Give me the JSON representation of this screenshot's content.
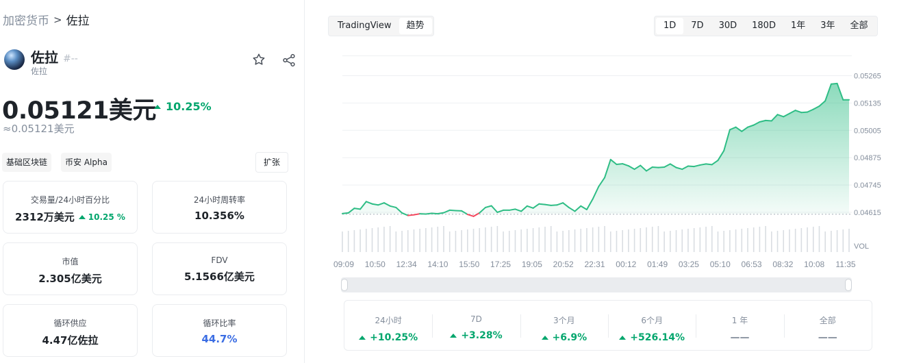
{
  "breadcrumb": {
    "parent": "加密货币",
    "separator": ">",
    "current": "佐拉"
  },
  "coin": {
    "name": "佐拉",
    "rank": "#--",
    "subtitle": "佐拉"
  },
  "price": {
    "value": "0.05121美元",
    "change": "10.25%",
    "approx": "≈0.05121美元"
  },
  "tags": [
    "基础区块链",
    "币安 Alpha"
  ],
  "expand_label": "扩张",
  "stats": [
    {
      "label": "交易量/24小时百分比",
      "value": "2312万美元",
      "sub": "10.25 %"
    },
    {
      "label": "24小时周转率",
      "value": "10.356%"
    },
    {
      "label": "市值",
      "value": "2.305亿美元"
    },
    {
      "label": "FDV",
      "value": "5.1566亿美元"
    },
    {
      "label": "循环供应",
      "value": "4.47亿佐拉"
    },
    {
      "label": "循环比率",
      "value": "44.7%"
    }
  ],
  "chart_tabs": [
    "TradingView",
    "趋势"
  ],
  "range_tabs": [
    "1D",
    "7D",
    "30D",
    "180D",
    "1年",
    "3年",
    "全部"
  ],
  "colors": {
    "up": "#03a66d",
    "line": "#2ebd85",
    "down": "#f6465d",
    "blue": "#3b6de3"
  },
  "chart_data": {
    "type": "area",
    "x_labels": [
      "09:09",
      "10:50",
      "12:34",
      "14:10",
      "15:50",
      "17:25",
      "19:05",
      "20:52",
      "22:31",
      "00:12",
      "01:49",
      "03:25",
      "05:10",
      "06:53",
      "08:32",
      "10:08",
      "11:35"
    ],
    "y_ticks": [
      "0.05265",
      "0.05135",
      "0.05005",
      "0.04875",
      "0.04745",
      "0.04615"
    ],
    "y_range": [
      0.04615,
      0.05265
    ],
    "baseline": 0.04606,
    "volume_label": "VOL",
    "values": [
      0.04609,
      0.04612,
      0.04634,
      0.0463,
      0.04666,
      0.04655,
      0.0465,
      0.0466,
      0.04645,
      0.04638,
      0.04612,
      0.046,
      0.04603,
      0.04608,
      0.04607,
      0.0461,
      0.04608,
      0.04613,
      0.04625,
      0.04623,
      0.04622,
      0.04605,
      0.04596,
      0.04612,
      0.04638,
      0.04646,
      0.04615,
      0.04625,
      0.04625,
      0.0463,
      0.0462,
      0.04645,
      0.04635,
      0.04655,
      0.04652,
      0.04648,
      0.0465,
      0.0466,
      0.04638,
      0.0462,
      0.04645,
      0.04628,
      0.04678,
      0.04738,
      0.0478,
      0.04866,
      0.04843,
      0.04846,
      0.04836,
      0.0482,
      0.04838,
      0.04812,
      0.0483,
      0.04828,
      0.0483,
      0.04845,
      0.04828,
      0.0482,
      0.04835,
      0.04833,
      0.0484,
      0.04845,
      0.04842,
      0.04862,
      0.04908,
      0.05008,
      0.0502,
      0.05,
      0.0502,
      0.0503,
      0.05045,
      0.05052,
      0.0505,
      0.0508,
      0.0507,
      0.05085,
      0.051,
      0.0509,
      0.05092,
      0.05105,
      0.0512,
      0.05145,
      0.05225,
      0.05228,
      0.0515,
      0.0515
    ]
  },
  "performance": [
    {
      "label": "24小时",
      "value": "+10.25%"
    },
    {
      "label": "7D",
      "value": "+3.28%"
    },
    {
      "label": "3个月",
      "value": "+6.9%"
    },
    {
      "label": "6个月",
      "value": "+526.14%"
    },
    {
      "label": "1 年",
      "value": "——"
    },
    {
      "label": "全部",
      "value": "——"
    }
  ]
}
